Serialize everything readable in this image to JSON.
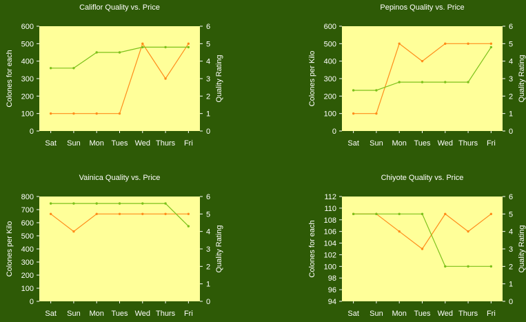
{
  "chart_data": [
    {
      "type": "line",
      "title": "Califlor Quality vs. Price",
      "ylabel": "Colones for each",
      "y2label": "Quality Rating",
      "categories": [
        "Sat",
        "Sun",
        "Mon",
        "Tues",
        "Wed",
        "Thurs",
        "Fri"
      ],
      "ylim": [
        0,
        600
      ],
      "yticks": [
        0,
        100,
        200,
        300,
        400,
        500,
        600
      ],
      "y2lim": [
        0,
        6
      ],
      "y2ticks": [
        0,
        1,
        2,
        3,
        4,
        5,
        6
      ],
      "grid": false,
      "series": [
        {
          "axis": "left",
          "color": "#ff8c1a",
          "values": [
            100,
            100,
            100,
            100,
            500,
            300,
            500
          ]
        },
        {
          "axis": "right",
          "color": "#7cc11a",
          "values": [
            3.6,
            3.6,
            4.5,
            4.5,
            4.8,
            4.8,
            4.8
          ]
        }
      ]
    },
    {
      "type": "line",
      "title": "Pepinos Quality vs. Price",
      "ylabel": "Colones per Kilo",
      "y2label": "Quality Rating",
      "categories": [
        "Sat",
        "Sun",
        "Mon",
        "Tues",
        "Wed",
        "Thurs",
        "Fri"
      ],
      "ylim": [
        0,
        600
      ],
      "yticks": [
        0,
        100,
        200,
        300,
        400,
        500,
        600
      ],
      "y2lim": [
        0,
        6
      ],
      "y2ticks": [
        0,
        1,
        2,
        3,
        4,
        5,
        6
      ],
      "grid": false,
      "series": [
        {
          "axis": "left",
          "color": "#ff8c1a",
          "values": [
            100,
            100,
            500,
            400,
            500,
            500,
            500
          ]
        },
        {
          "axis": "right",
          "color": "#7cc11a",
          "values": [
            2.33,
            2.33,
            2.8,
            2.8,
            2.8,
            2.8,
            4.8
          ]
        }
      ]
    },
    {
      "type": "line",
      "title": "Vainica Quality vs. Price",
      "ylabel": "Colones per Kilo",
      "y2label": "Quality Rating",
      "categories": [
        "Sat",
        "Sun",
        "Mon",
        "Tues",
        "Wed",
        "Thurs",
        "Fri"
      ],
      "ylim": [
        0,
        800
      ],
      "yticks": [
        0,
        100,
        200,
        300,
        400,
        500,
        600,
        700,
        800
      ],
      "y2lim": [
        0,
        6
      ],
      "y2ticks": [
        0,
        1,
        2,
        3,
        4,
        5,
        6
      ],
      "grid": false,
      "series": [
        {
          "axis": "left",
          "color": "#ff8c1a",
          "values": [
            667,
            533,
            667,
            667,
            667,
            667,
            667
          ]
        },
        {
          "axis": "right",
          "color": "#7cc11a",
          "values": [
            5.6,
            5.6,
            5.6,
            5.6,
            5.6,
            5.6,
            4.3
          ]
        }
      ]
    },
    {
      "type": "line",
      "title": "Chiyote Quality vs. Price",
      "ylabel": "Colones for each",
      "y2label": "Quality Rating",
      "categories": [
        "Sat",
        "Sun",
        "Mon",
        "Tues",
        "Wed",
        "Thurs",
        "Fri"
      ],
      "ylim": [
        94,
        112
      ],
      "yticks": [
        94,
        96,
        98,
        100,
        102,
        104,
        106,
        108,
        110,
        112
      ],
      "y2lim": [
        0,
        6
      ],
      "y2ticks": [
        0,
        1,
        2,
        3,
        4,
        5,
        6
      ],
      "grid": false,
      "series": [
        {
          "axis": "left",
          "color": "#ff8c1a",
          "values": [
            109,
            109,
            106,
            103,
            109,
            106,
            109
          ]
        },
        {
          "axis": "right",
          "color": "#7cc11a",
          "values": [
            5,
            5,
            5,
            5,
            2,
            2,
            2
          ]
        }
      ]
    }
  ],
  "colors": {
    "page_background": "#2e5a06",
    "plot_background": "#ffff99",
    "text": "#ffffff"
  }
}
